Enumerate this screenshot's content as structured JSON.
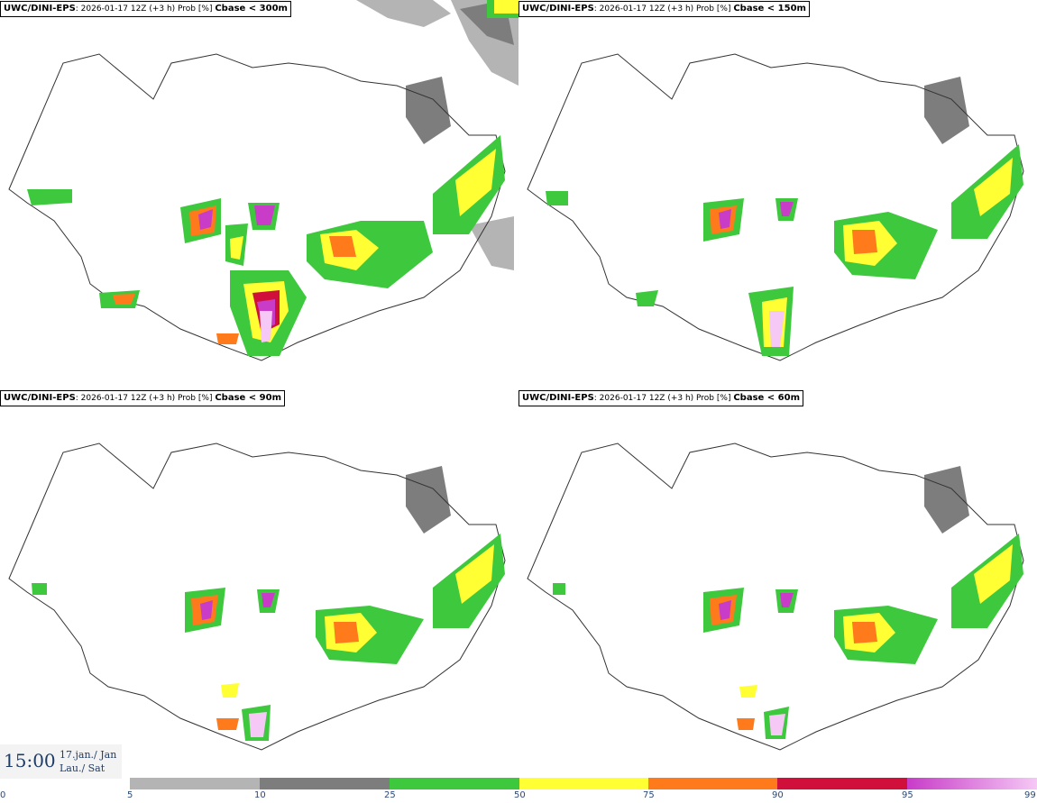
{
  "panels": [
    {
      "source": "UWC/DINI-EPS",
      "meta": "2026-01-17 12Z (+3 h) Prob [%]",
      "variable": "Cbase < 300m"
    },
    {
      "source": "UWC/DINI-EPS",
      "meta": "2026-01-17 12Z (+3 h) Prob [%]",
      "variable": "Cbase < 150m"
    },
    {
      "source": "UWC/DINI-EPS",
      "meta": "2026-01-17 12Z (+3 h) Prob [%]",
      "variable": "Cbase < 90m"
    },
    {
      "source": "UWC/DINI-EPS",
      "meta": "2026-01-17 12Z (+3 h) Prob [%]",
      "variable": "Cbase < 60m"
    }
  ],
  "valid_time": {
    "time": "15:00",
    "date_line1": "17.jan./ Jan",
    "date_line2": "Lau./ Sat"
  },
  "legend": {
    "ticks": [
      "0",
      "5",
      "10",
      "25",
      "50",
      "75",
      "90",
      "95",
      "99"
    ],
    "colors": [
      "#ffffff",
      "#b4b4b4",
      "#7d7d7d",
      "#3ec83e",
      "#ffff33",
      "#ff7a1a",
      "#d0103a",
      "#c83cc8",
      "#f5c8f5"
    ]
  }
}
